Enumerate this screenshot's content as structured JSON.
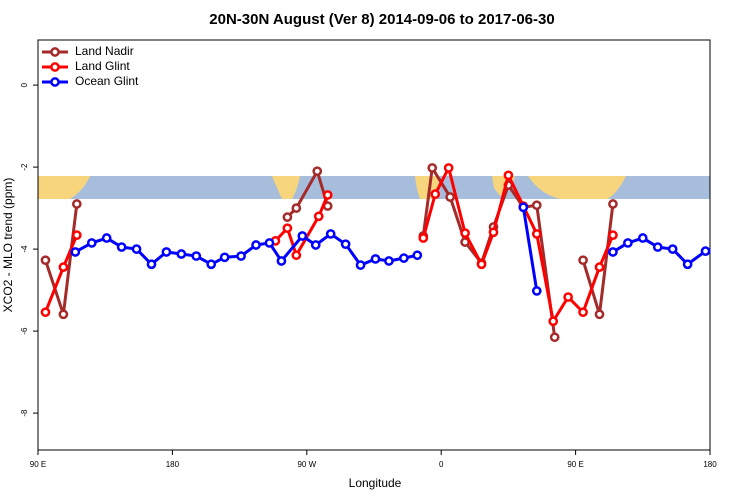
{
  "chart_data": {
    "type": "line",
    "title": "20N-30N August (Ver 8)   2014-09-06 to 2017-06-30",
    "x_label": "Longitude",
    "y_label": "XCO2 - MLO trend (ppm)",
    "xlim": [
      90,
      540
    ],
    "ylim": [
      -8.9,
      1.1
    ],
    "xticks": [
      {
        "value": 90,
        "label": "90 E"
      },
      180,
      {
        "value": 270,
        "label": "90 W"
      },
      {
        "value": 360,
        "label": "0"
      },
      {
        "value": 450,
        "label": "90 E"
      },
      {
        "value": 540,
        "label": "180"
      }
    ],
    "yticks": [
      0,
      -2,
      -4,
      -6,
      -8
    ],
    "legend": "top-left",
    "series": [
      {
        "name": "Land Nadir",
        "color": "#a52a2a",
        "x": [
          95,
          107,
          116,
          null,
          257,
          263,
          277,
          284,
          null,
          348,
          354,
          366,
          376,
          387,
          395,
          405,
          415,
          424,
          436,
          null,
          455,
          466,
          475
        ],
        "values": [
          -4.27,
          -5.59,
          -2.9,
          null,
          -3.22,
          -3.0,
          -2.1,
          -2.95,
          null,
          -3.68,
          -2.02,
          -2.73,
          -3.83,
          -4.34,
          -3.46,
          -2.44,
          -2.98,
          -2.93,
          -6.15,
          null,
          -4.27,
          -5.59,
          -2.9
        ]
      },
      {
        "name": "Land Glint",
        "color": "#ff0000",
        "x": [
          95,
          107,
          116,
          null,
          249,
          257,
          263,
          278,
          284,
          null,
          348,
          356,
          365,
          376,
          387,
          395,
          405,
          415,
          424,
          435,
          445,
          455,
          466,
          475
        ],
        "values": [
          -5.54,
          -4.44,
          -3.66,
          null,
          -3.8,
          -3.49,
          -4.15,
          -3.2,
          -2.68,
          null,
          -3.73,
          -2.66,
          -2.02,
          -3.61,
          -4.37,
          -3.59,
          -2.2,
          -2.95,
          -3.63,
          -5.76,
          -5.17,
          -5.54,
          -4.44,
          -3.66
        ]
      },
      {
        "name": "Ocean Glint",
        "color": "#0000ff",
        "x": [
          115,
          126,
          136,
          146,
          156,
          166,
          176,
          186,
          196,
          206,
          215,
          226,
          236,
          245,
          253,
          267,
          276,
          286,
          296,
          306,
          316,
          325,
          335,
          344,
          null,
          415,
          424,
          null,
          475,
          485,
          495,
          505,
          515,
          525,
          537
        ],
        "values": [
          -4.07,
          -3.85,
          -3.73,
          -3.95,
          -4.0,
          -4.37,
          -4.07,
          -4.12,
          -4.17,
          -4.37,
          -4.2,
          -4.17,
          -3.9,
          -3.85,
          -4.29,
          -3.68,
          -3.9,
          -3.63,
          -3.88,
          -4.39,
          -4.24,
          -4.29,
          -4.22,
          -4.15,
          null,
          -2.98,
          -5.02,
          null,
          -4.07,
          -3.85,
          -3.73,
          -3.95,
          -4.0,
          -4.37,
          -4.05
        ]
      }
    ]
  }
}
